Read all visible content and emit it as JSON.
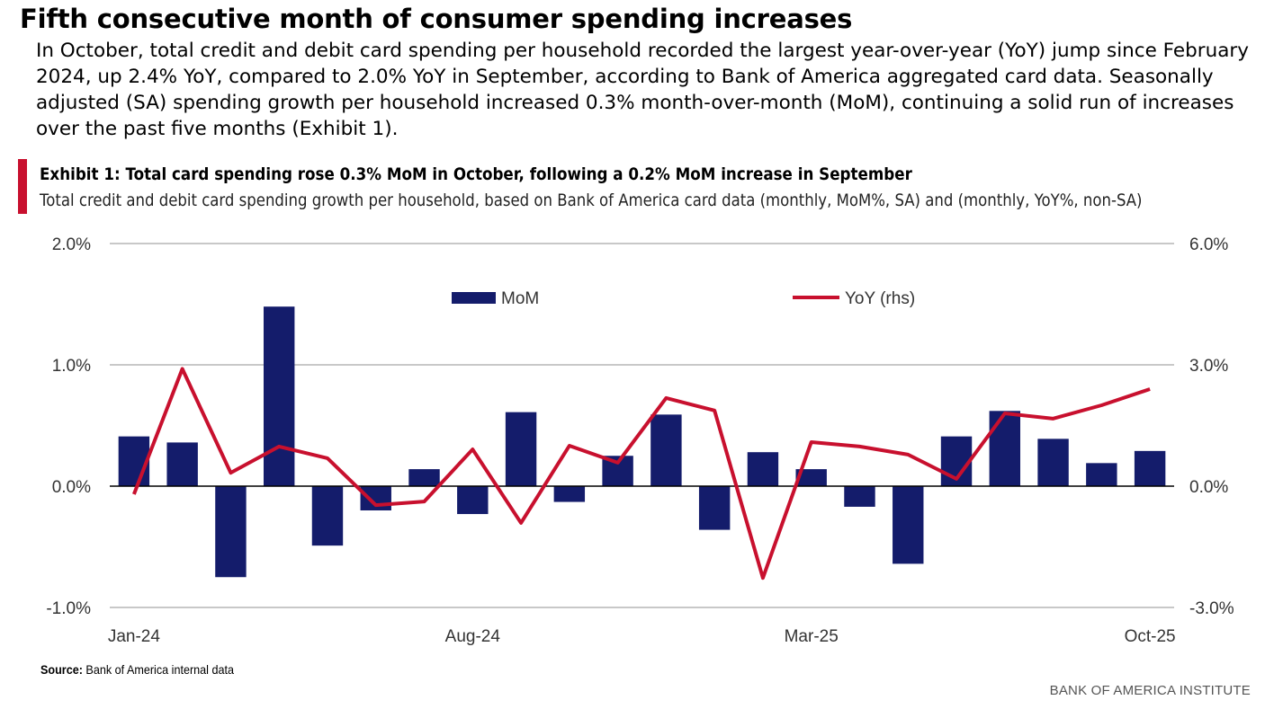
{
  "header": {
    "title": "Fifth consecutive month of consumer spending increases",
    "body": "In October, total credit and debit card spending per household recorded the largest year-over-year (YoY) jump since February 2024, up 2.4% YoY, compared to 2.0% YoY in September, according to Bank of America aggregated card data. Seasonally adjusted (SA) spending growth per household increased 0.3% month-over-month (MoM), continuing a solid run of increases over the past five months (Exhibit 1)."
  },
  "exhibit": {
    "title": "Exhibit 1: Total card spending rose 0.3% MoM in October, following a 0.2% MoM increase in September",
    "subtitle": "Total credit and debit card spending growth per household, based on Bank of America card data (monthly, MoM%, SA) and (monthly, YoY%, non-SA)"
  },
  "footer": {
    "source_label": "Source:",
    "source_text": " Bank of America internal data",
    "brand": "BANK OF AMERICA INSTITUTE"
  },
  "colors": {
    "bar": "#141c6b",
    "line": "#c8102e",
    "grid": "#c8c8c8"
  },
  "chart_data": {
    "type": "bar+line",
    "categories": [
      "Jan-24",
      "Feb-24",
      "Mar-24",
      "Apr-24",
      "May-24",
      "Jun-24",
      "Jul-24",
      "Aug-24",
      "Sep-24",
      "Oct-24",
      "Nov-24",
      "Dec-24",
      "Jan-25",
      "Feb-25",
      "Mar-25",
      "Apr-25",
      "May-25",
      "Jun-25",
      "Jul-25",
      "Aug-25",
      "Sep-25",
      "Oct-25"
    ],
    "x_tick_labels": [
      "Jan-24",
      "Aug-24",
      "Mar-25",
      "Oct-25"
    ],
    "series": [
      {
        "name": "MoM",
        "type": "bar",
        "axis": "left",
        "values": [
          0.41,
          0.36,
          -0.75,
          1.48,
          -0.49,
          -0.2,
          0.14,
          -0.23,
          0.61,
          -0.13,
          0.25,
          0.59,
          -0.36,
          0.28,
          0.14,
          -0.17,
          -0.64,
          0.41,
          0.62,
          0.39,
          0.19,
          0.29
        ]
      },
      {
        "name": "YoY (rhs)",
        "type": "line",
        "axis": "right",
        "values": [
          -0.2,
          2.9,
          0.33,
          0.98,
          0.69,
          -0.47,
          -0.38,
          0.91,
          -0.91,
          1.0,
          0.58,
          2.18,
          1.87,
          -2.27,
          1.09,
          0.98,
          0.78,
          0.18,
          1.8,
          1.67,
          2.0,
          2.4
        ]
      }
    ],
    "ylim_left": [
      -1.0,
      2.0
    ],
    "ylim_right": [
      -3.0,
      6.0
    ],
    "left_ticks": [
      {
        "v": 2.0,
        "label": "2.0%"
      },
      {
        "v": 1.0,
        "label": "1.0%"
      },
      {
        "v": 0.0,
        "label": "0.0%"
      },
      {
        "v": -1.0,
        "label": "-1.0%"
      }
    ],
    "right_ticks": [
      {
        "v": 6.0,
        "label": "6.0%"
      },
      {
        "v": 3.0,
        "label": "3.0%"
      },
      {
        "v": 0.0,
        "label": "0.0%"
      },
      {
        "v": -3.0,
        "label": "-3.0%"
      }
    ],
    "legend": "top-center",
    "grid": true
  }
}
